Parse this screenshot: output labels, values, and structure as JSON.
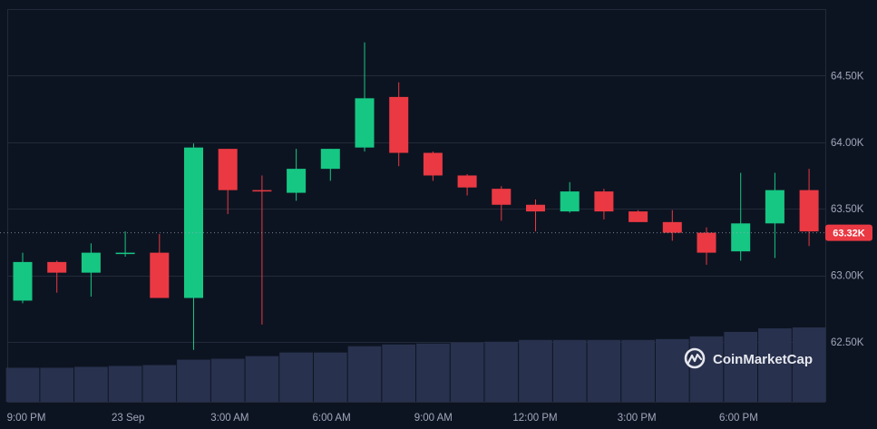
{
  "colors": {
    "background": "#0d1421",
    "grid": "#222a3a",
    "up": "#16c784",
    "down": "#ea3943",
    "volume": "#28314d",
    "axis_text": "#a1a7bb",
    "watermark": "#e6e8ef"
  },
  "chart_data": {
    "type": "candlestick",
    "grid": true,
    "y_axis_position": "right",
    "ylim": [
      62050,
      65000
    ],
    "y_ticks": [
      {
        "value": 62500,
        "label": "62.50K"
      },
      {
        "value": 63000,
        "label": "63.00K"
      },
      {
        "value": 63500,
        "label": "63.50K"
      },
      {
        "value": 64000,
        "label": "64.00K"
      },
      {
        "value": 64500,
        "label": "64.50K"
      }
    ],
    "x_ticks": [
      "9:00 PM",
      "23 Sep",
      "3:00 AM",
      "6:00 AM",
      "9:00 AM",
      "12:00 PM",
      "3:00 PM",
      "6:00 PM"
    ],
    "current_price": {
      "value": 63320,
      "label": "63.32K"
    },
    "candles": [
      {
        "o": 62810,
        "h": 63170,
        "l": 62790,
        "c": 63100
      },
      {
        "o": 63100,
        "h": 63110,
        "l": 62870,
        "c": 63020
      },
      {
        "o": 63020,
        "h": 63240,
        "l": 62840,
        "c": 63170
      },
      {
        "o": 63170,
        "h": 63330,
        "l": 63140,
        "c": 63170
      },
      {
        "o": 63170,
        "h": 63310,
        "l": 62830,
        "c": 62830
      },
      {
        "o": 62830,
        "h": 63990,
        "l": 62440,
        "c": 63960
      },
      {
        "o": 63950,
        "h": 63950,
        "l": 63460,
        "c": 63640
      },
      {
        "o": 63640,
        "h": 63750,
        "l": 62630,
        "c": 63630
      },
      {
        "o": 63620,
        "h": 63950,
        "l": 63560,
        "c": 63800
      },
      {
        "o": 63800,
        "h": 63950,
        "l": 63710,
        "c": 63950
      },
      {
        "o": 63960,
        "h": 64750,
        "l": 63930,
        "c": 64330
      },
      {
        "o": 64340,
        "h": 64450,
        "l": 63820,
        "c": 63920
      },
      {
        "o": 63920,
        "h": 63930,
        "l": 63710,
        "c": 63750
      },
      {
        "o": 63750,
        "h": 63760,
        "l": 63600,
        "c": 63660
      },
      {
        "o": 63650,
        "h": 63670,
        "l": 63410,
        "c": 63530
      },
      {
        "o": 63530,
        "h": 63570,
        "l": 63330,
        "c": 63480
      },
      {
        "o": 63480,
        "h": 63700,
        "l": 63470,
        "c": 63630
      },
      {
        "o": 63630,
        "h": 63650,
        "l": 63420,
        "c": 63480
      },
      {
        "o": 63480,
        "h": 63490,
        "l": 63400,
        "c": 63400
      },
      {
        "o": 63400,
        "h": 63490,
        "l": 63260,
        "c": 63320
      },
      {
        "o": 63320,
        "h": 63360,
        "l": 63080,
        "c": 63170
      },
      {
        "o": 63180,
        "h": 63770,
        "l": 63110,
        "c": 63390
      },
      {
        "o": 63390,
        "h": 63770,
        "l": 63130,
        "c": 63640
      },
      {
        "o": 63640,
        "h": 63800,
        "l": 63220,
        "c": 63330
      }
    ],
    "volume": [
      38,
      38,
      39,
      40,
      41,
      47,
      48,
      51,
      55,
      55,
      62,
      64,
      65,
      66,
      67,
      69,
      69,
      69,
      69,
      70,
      73,
      78,
      82,
      83
    ]
  },
  "watermark": {
    "text": "CoinMarketCap",
    "icon": "coinmarketcap-logo-icon"
  }
}
